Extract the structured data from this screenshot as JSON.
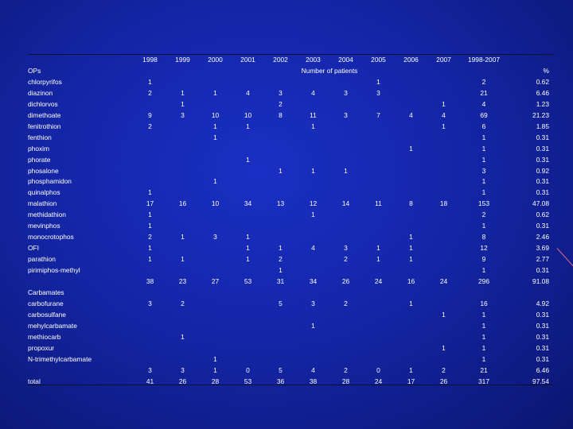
{
  "header": {
    "years": [
      "1998",
      "1999",
      "2000",
      "2001",
      "2002",
      "2003",
      "2004",
      "2005",
      "2006",
      "2007"
    ],
    "range_label": "1998-2007",
    "subheader": "Number of patients",
    "percent_label": "%"
  },
  "rows": [
    {
      "label": "OPs",
      "v": [
        "",
        "",
        "",
        "",
        "",
        "",
        "",
        "",
        "",
        ""
      ],
      "range": "",
      "pct": ""
    },
    {
      "label": "chlorpyrifos",
      "v": [
        "1",
        "",
        "",
        "",
        "",
        "",
        "",
        "1",
        "",
        ""
      ],
      "range": "2",
      "pct": "0.62"
    },
    {
      "label": "diazinon",
      "v": [
        "2",
        "1",
        "1",
        "4",
        "3",
        "4",
        "3",
        "3",
        "",
        ""
      ],
      "range": "21",
      "pct": "6.46"
    },
    {
      "label": "dichlorvos",
      "v": [
        "",
        "1",
        "",
        "",
        "2",
        "",
        "",
        "",
        "",
        "1"
      ],
      "range": "4",
      "pct": "1.23"
    },
    {
      "label": "dimethoate",
      "v": [
        "9",
        "3",
        "10",
        "10",
        "8",
        "11",
        "3",
        "7",
        "4",
        "4"
      ],
      "range": "69",
      "pct": "21.23"
    },
    {
      "label": "fenitrothion",
      "v": [
        "2",
        "",
        "1",
        "1",
        "",
        "1",
        "",
        "",
        "",
        "1"
      ],
      "range": "6",
      "pct": "1.85"
    },
    {
      "label": "fenthion",
      "v": [
        "",
        "",
        "1",
        "",
        "",
        "",
        "",
        "",
        "",
        ""
      ],
      "range": "1",
      "pct": "0.31"
    },
    {
      "label": "phoxim",
      "v": [
        "",
        "",
        "",
        "",
        "",
        "",
        "",
        "",
        "1",
        ""
      ],
      "range": "1",
      "pct": "0.31"
    },
    {
      "label": "phorate",
      "v": [
        "",
        "",
        "",
        "1",
        "",
        "",
        "",
        "",
        "",
        ""
      ],
      "range": "1",
      "pct": "0.31"
    },
    {
      "label": "phosalone",
      "v": [
        "",
        "",
        "",
        "",
        "1",
        "1",
        "1",
        "",
        "",
        ""
      ],
      "range": "3",
      "pct": "0.92"
    },
    {
      "label": "phosphamidon",
      "v": [
        "",
        "",
        "1",
        "",
        "",
        "",
        "",
        "",
        "",
        ""
      ],
      "range": "1",
      "pct": "0.31"
    },
    {
      "label": "quinalphos",
      "v": [
        "1",
        "",
        "",
        "",
        "",
        "",
        "",
        "",
        "",
        ""
      ],
      "range": "1",
      "pct": "0.31"
    },
    {
      "label": "malathion",
      "v": [
        "17",
        "16",
        "10",
        "34",
        "13",
        "12",
        "14",
        "11",
        "8",
        "18"
      ],
      "range": "153",
      "pct": "47.08"
    },
    {
      "label": "methidathion",
      "v": [
        "1",
        "",
        "",
        "",
        "",
        "1",
        "",
        "",
        "",
        ""
      ],
      "range": "2",
      "pct": "0.62"
    },
    {
      "label": "mevinphos",
      "v": [
        "1",
        "",
        "",
        "",
        "",
        "",
        "",
        "",
        "",
        ""
      ],
      "range": "1",
      "pct": "0.31"
    },
    {
      "label": "monocrotophos",
      "v": [
        "2",
        "1",
        "3",
        "1",
        "",
        "",
        "",
        "",
        "1",
        ""
      ],
      "range": "8",
      "pct": "2.46"
    },
    {
      "label": "OFI",
      "v": [
        "1",
        "",
        "",
        "1",
        "1",
        "4",
        "3",
        "1",
        "1",
        ""
      ],
      "range": "12",
      "pct": "3.69"
    },
    {
      "label": "parathion",
      "v": [
        "1",
        "1",
        "",
        "1",
        "2",
        "",
        "2",
        "1",
        "1",
        ""
      ],
      "range": "9",
      "pct": "2.77"
    },
    {
      "label": "pirimiphos-methyl",
      "v": [
        "",
        "",
        "",
        "",
        "1",
        "",
        "",
        "",
        "",
        ""
      ],
      "range": "1",
      "pct": "0.31"
    },
    {
      "label": "",
      "v": [
        "38",
        "23",
        "27",
        "53",
        "31",
        "34",
        "26",
        "24",
        "16",
        "24"
      ],
      "range": "296",
      "pct": "91.08"
    },
    {
      "label": "Carbamates",
      "v": [
        "",
        "",
        "",
        "",
        "",
        "",
        "",
        "",
        "",
        ""
      ],
      "range": "",
      "pct": ""
    },
    {
      "label": "carbofurane",
      "v": [
        "3",
        "2",
        "",
        "",
        "5",
        "3",
        "2",
        "",
        "1",
        ""
      ],
      "range": "16",
      "pct": "4.92"
    },
    {
      "label": "carbosulfane",
      "v": [
        "",
        "",
        "",
        "",
        "",
        "",
        "",
        "",
        "",
        "1"
      ],
      "range": "1",
      "pct": "0.31"
    },
    {
      "label": "mehylcarbamate",
      "v": [
        "",
        "",
        "",
        "",
        "",
        "1",
        "",
        "",
        "",
        ""
      ],
      "range": "1",
      "pct": "0.31"
    },
    {
      "label": "methiocarb",
      "v": [
        "",
        "1",
        "",
        "",
        "",
        "",
        "",
        "",
        "",
        ""
      ],
      "range": "1",
      "pct": "0.31"
    },
    {
      "label": "propoxur",
      "v": [
        "",
        "",
        "",
        "",
        "",
        "",
        "",
        "",
        "",
        "1"
      ],
      "range": "1",
      "pct": "0.31"
    },
    {
      "label": "N-trimethylcarbamate",
      "v": [
        "",
        "",
        "1",
        "",
        "",
        "",
        "",
        "",
        "",
        ""
      ],
      "range": "1",
      "pct": "0.31"
    },
    {
      "label": "",
      "v": [
        "3",
        "3",
        "1",
        "0",
        "5",
        "4",
        "2",
        "0",
        "1",
        "2"
      ],
      "range": "21",
      "pct": "6.46"
    },
    {
      "label": "total",
      "v": [
        "41",
        "26",
        "28",
        "53",
        "36",
        "38",
        "28",
        "24",
        "17",
        "26"
      ],
      "range": "317",
      "pct": "97.54"
    }
  ]
}
